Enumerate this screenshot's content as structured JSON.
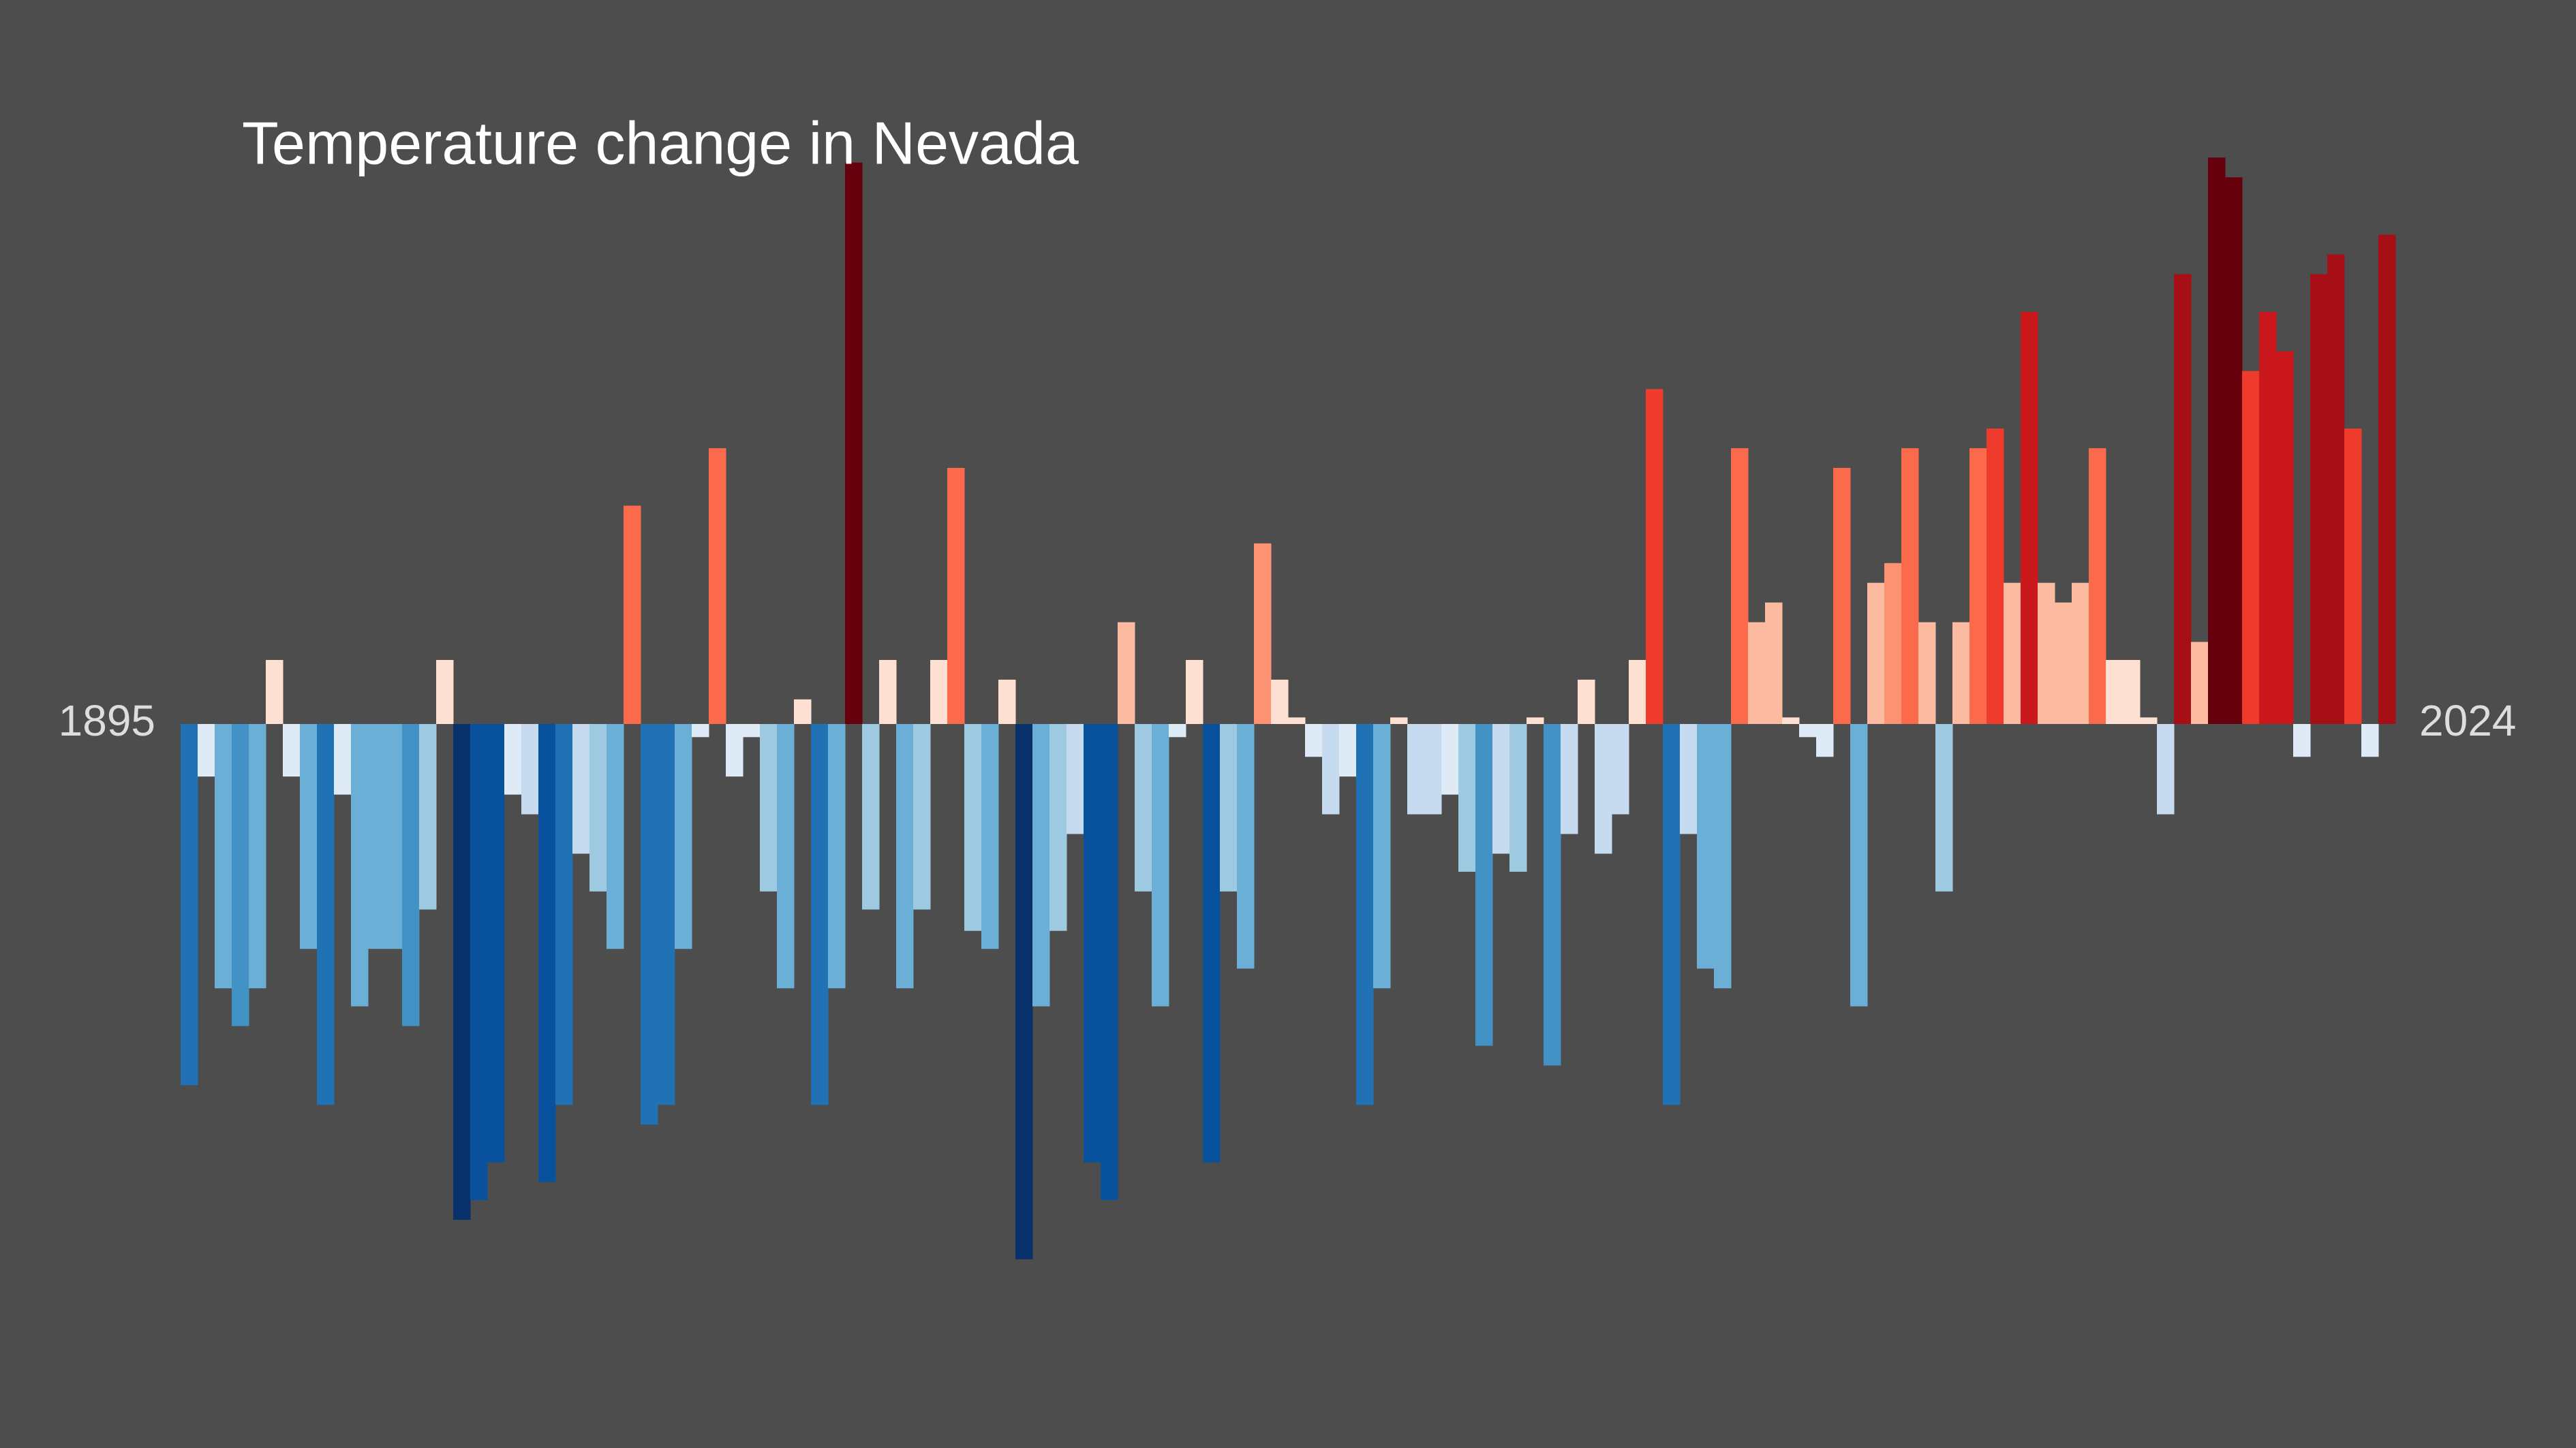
{
  "chart_data": {
    "type": "bar",
    "title": "Temperature change in Nevada",
    "start_label": "1895",
    "end_label": "2024",
    "values": [
      -2.2,
      -0.32,
      -1.61,
      -1.84,
      -1.61,
      0.39,
      -0.32,
      -1.37,
      -2.32,
      -0.43,
      -1.72,
      -1.37,
      -1.37,
      -1.84,
      -1.13,
      0.39,
      -3.02,
      -2.9,
      -2.67,
      -0.43,
      -0.55,
      -2.79,
      -2.32,
      -0.79,
      -1.02,
      -1.37,
      1.33,
      -2.44,
      -2.32,
      -1.37,
      -0.08,
      1.68,
      -0.32,
      -0.08,
      -1.02,
      -1.61,
      0.15,
      -2.32,
      -1.61,
      3.42,
      -1.13,
      0.39,
      -1.61,
      -1.13,
      0.39,
      1.56,
      -1.26,
      -1.37,
      0.27,
      -3.26,
      -1.72,
      -1.26,
      -0.67,
      -2.67,
      -2.9,
      0.62,
      -1.02,
      -1.72,
      -0.08,
      0.39,
      -2.67,
      -1.02,
      -1.49,
      1.1,
      0.27,
      0.04,
      -0.2,
      -0.55,
      -0.32,
      -2.32,
      -1.61,
      0.04,
      -0.55,
      -0.55,
      -0.43,
      -0.9,
      -1.96,
      -0.79,
      -0.9,
      0.04,
      -2.08,
      -0.67,
      0.27,
      -0.79,
      -0.55,
      0.39,
      2.04,
      -2.32,
      -0.67,
      -1.49,
      -1.61,
      1.68,
      0.62,
      0.74,
      0.04,
      -0.08,
      -0.2,
      1.56,
      -1.72,
      0.86,
      0.98,
      1.68,
      0.62,
      -1.02,
      0.62,
      1.68,
      1.8,
      0.86,
      2.51,
      0.86,
      0.74,
      0.86,
      1.68,
      0.39,
      0.39,
      0.04,
      -0.55,
      2.74,
      0.5,
      3.45,
      3.33,
      2.15,
      2.51,
      2.27,
      -0.2,
      2.74,
      2.86,
      1.8,
      -0.2,
      2.98
    ],
    "ylim": [
      -4.41,
      4.41
    ],
    "palette": [
      "#08306b",
      "#08519c",
      "#2171b5",
      "#4292c6",
      "#6baed6",
      "#9ecae1",
      "#c6dbef",
      "#deebf7",
      "#fee0d2",
      "#fcbba1",
      "#fc9272",
      "#fb6a4a",
      "#ef3b2c",
      "#cb181d",
      "#a50f15",
      "#67000d"
    ]
  }
}
